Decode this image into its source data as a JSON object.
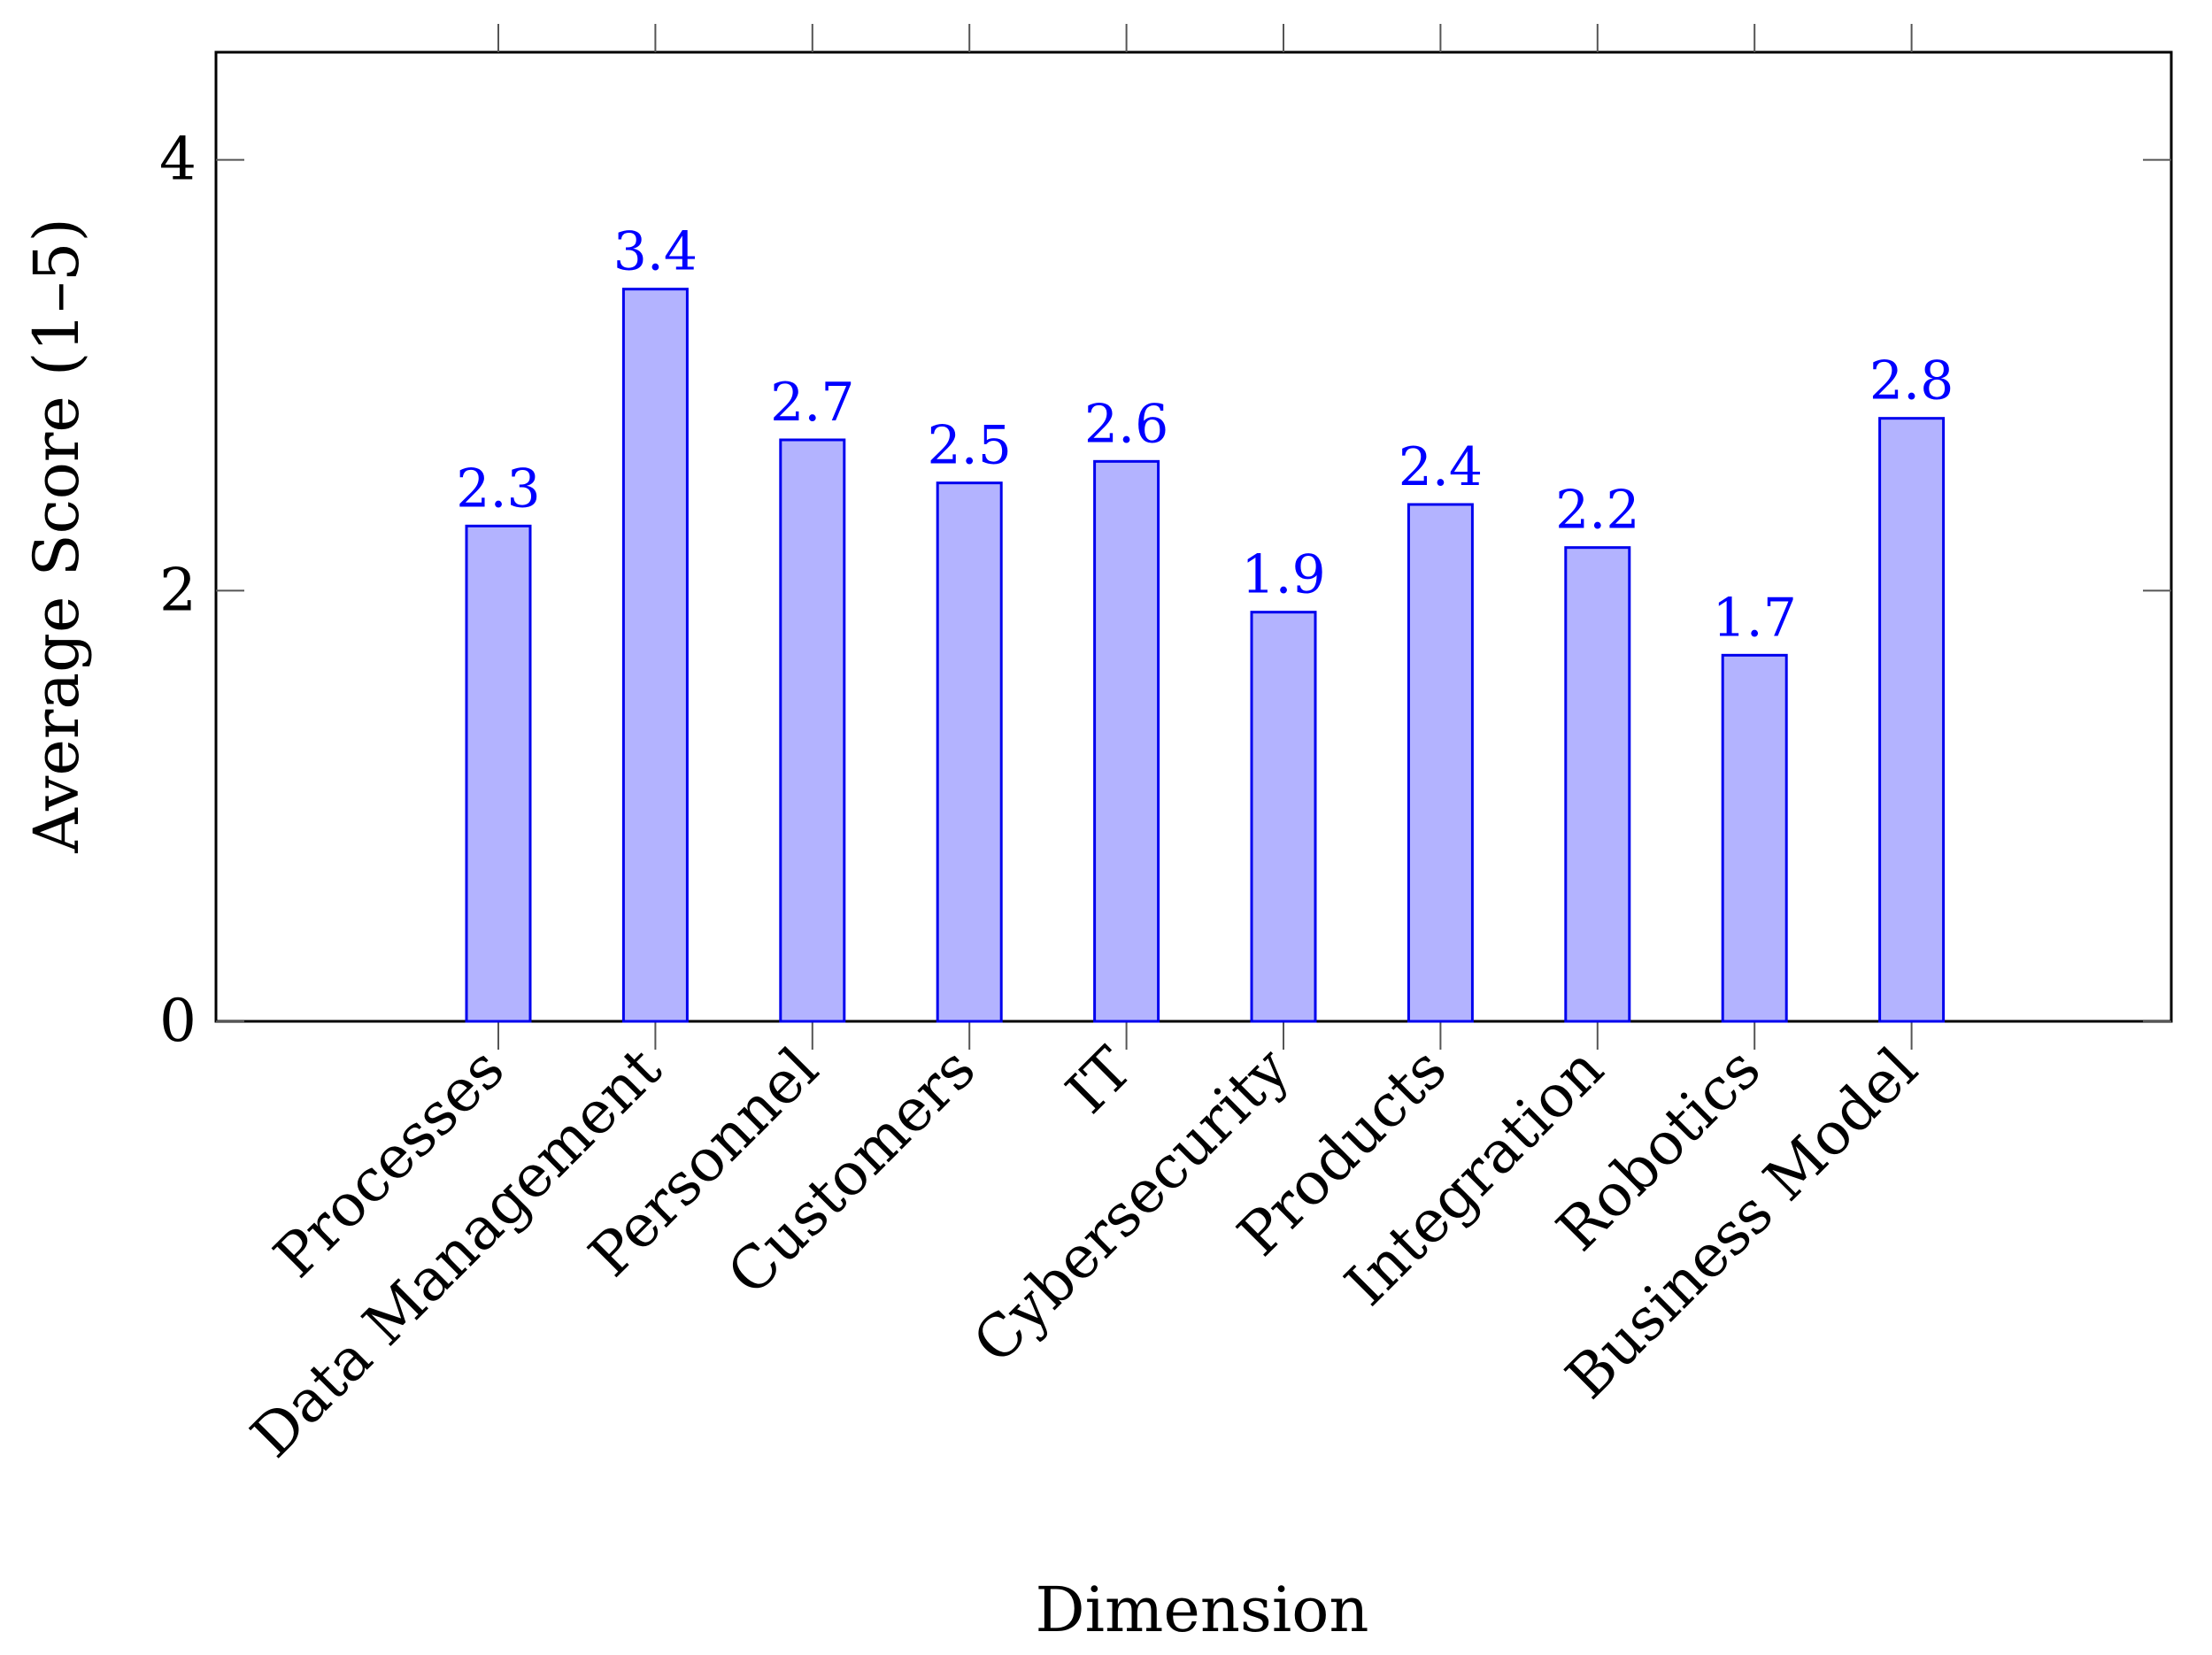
{
  "chart_data": {
    "type": "bar",
    "categories": [
      "Processes",
      "Data Management",
      "Personnel",
      "Customers",
      "IT",
      "Cybersecurity",
      "Products",
      "Integration",
      "Robotics",
      "Business Model"
    ],
    "values": [
      2.3,
      3.4,
      2.7,
      2.5,
      2.6,
      1.9,
      2.4,
      2.2,
      1.7,
      2.8
    ],
    "value_labels": [
      "2.3",
      "3.4",
      "2.7",
      "2.5",
      "2.6",
      "1.9",
      "2.4",
      "2.2",
      "1.7",
      "2.8"
    ],
    "xlabel": "Dimension",
    "ylabel": "Average Score (1–5)",
    "ylim": [
      0,
      4.5
    ],
    "yticks": [
      0,
      2,
      4
    ],
    "ytick_labels": [
      "0",
      "2",
      "4"
    ],
    "grid": false,
    "colors": {
      "bar_fill": "#b3b3ff",
      "bar_stroke": "#0000ee",
      "value_label": "#0000ff",
      "axis": "#000000",
      "tick": "#555555"
    }
  }
}
